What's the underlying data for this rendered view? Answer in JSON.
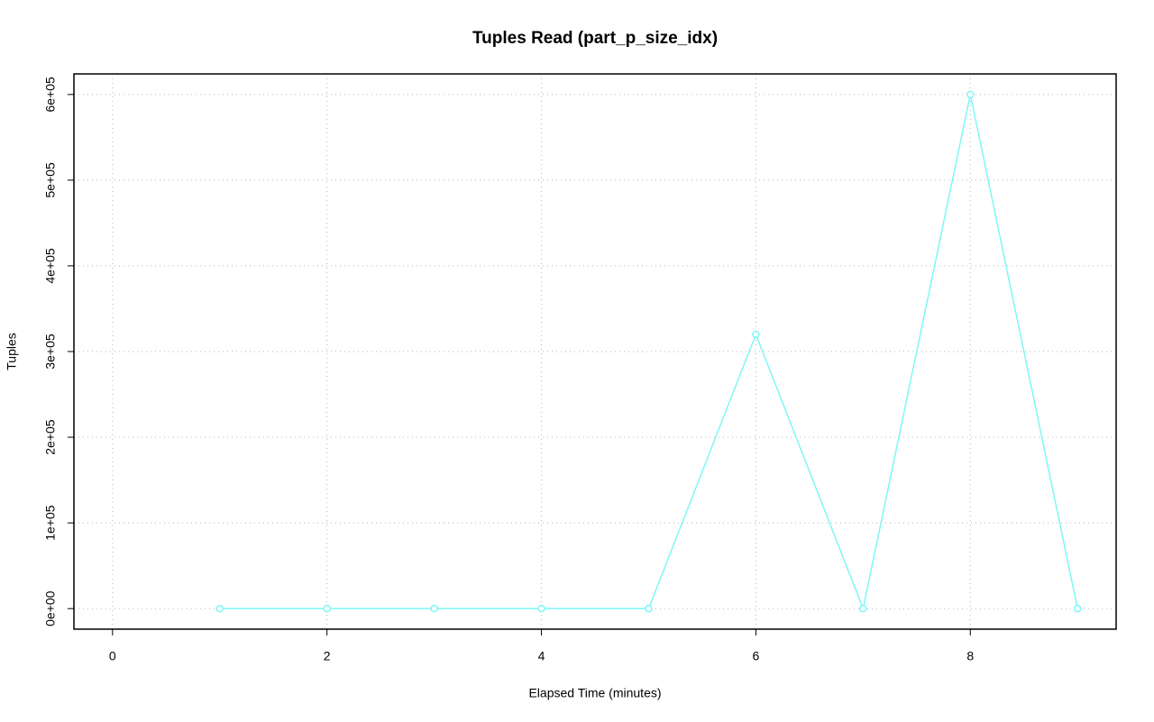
{
  "chart_data": {
    "type": "line",
    "title": "Tuples Read (part_p_size_idx)",
    "x_label": "Elapsed Time (minutes)",
    "y_label": "Tuples",
    "x": [
      1,
      2,
      3,
      4,
      5,
      6,
      7,
      8,
      9
    ],
    "series": [
      {
        "name": "part_p_size_idx",
        "color": "#7ff7f7",
        "values": [
          0,
          0,
          0,
          0,
          0,
          320000,
          0,
          600000,
          0
        ]
      }
    ],
    "xlim": [
      -0.36,
      9.36
    ],
    "xticks": [
      0,
      2,
      4,
      6,
      8
    ],
    "ylim": [
      -24000,
      624000
    ],
    "yticks": [
      {
        "value": 0,
        "label": "0e+00"
      },
      {
        "value": 100000,
        "label": "1e+05"
      },
      {
        "value": 200000,
        "label": "2e+05"
      },
      {
        "value": 300000,
        "label": "3e+05"
      },
      {
        "value": 400000,
        "label": "4e+05"
      },
      {
        "value": 500000,
        "label": "5e+05"
      },
      {
        "value": 600000,
        "label": "6e+05"
      }
    ],
    "grid": true
  }
}
